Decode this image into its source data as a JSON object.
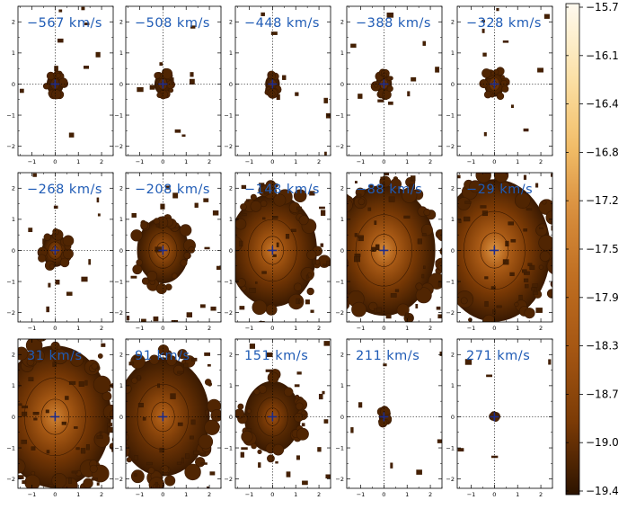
{
  "chart_data": {
    "type": "heatmap",
    "layout": {
      "rows": 3,
      "cols": 5
    },
    "panel_x_axis": {
      "range": [
        -1.6,
        2.5
      ],
      "ticks": [
        -1,
        0,
        1,
        2
      ]
    },
    "panel_y_axis": {
      "range": [
        -2.3,
        2.5
      ],
      "ticks": [
        -2,
        -1,
        0,
        1,
        2
      ]
    },
    "reference_lines": {
      "x": 0,
      "y": 0,
      "style": "dotted"
    },
    "marker": {
      "shape": "plus",
      "x": 0,
      "y": 0,
      "color": "#1a2a8a"
    },
    "panels": [
      {
        "label": "−567 km/s",
        "peak": -18.9,
        "extent": 0.35
      },
      {
        "label": "−508 km/s",
        "peak": -18.8,
        "extent": 0.35
      },
      {
        "label": "−448 km/s",
        "peak": -18.7,
        "extent": 0.3
      },
      {
        "label": "−388 km/s",
        "peak": -18.6,
        "extent": 0.33
      },
      {
        "label": "−328 km/s",
        "peak": -18.5,
        "extent": 0.42
      },
      {
        "label": "−268 km/s",
        "peak": -18.3,
        "extent": 0.55
      },
      {
        "label": "−208 km/s",
        "peak": -18.0,
        "extent": 1.1
      },
      {
        "label": "−148 km/s",
        "peak": -17.6,
        "extent": 1.9
      },
      {
        "label": "−88 km/s",
        "peak": -17.3,
        "extent": 2.2
      },
      {
        "label": "−29 km/s",
        "peak": -17.2,
        "extent": 2.4
      },
      {
        "label": "31 km/s",
        "peak": -17.4,
        "extent": 2.4
      },
      {
        "label": "91 km/s",
        "peak": -17.9,
        "extent": 2.0
      },
      {
        "label": "151 km/s",
        "peak": -18.4,
        "extent": 1.2
      },
      {
        "label": "211 km/s",
        "peak": -18.9,
        "extent": 0.2
      },
      {
        "label": "271 km/s",
        "peak": -19.2,
        "extent": 0.06
      }
    ],
    "colorbar": {
      "ticks": [
        "−15.7",
        "−16.1",
        "−16.4",
        "−16.8",
        "−17.2",
        "−17.5",
        "−17.9",
        "−18.3",
        "−18.7",
        "−19.0",
        "−19.4"
      ],
      "min": -19.4,
      "max": -15.7,
      "colors": [
        "#2b1300",
        "#7a3a05",
        "#a35512",
        "#bd6b1f",
        "#d78c3b",
        "#f3bf6a",
        "#fbe2aa",
        "#fffaf0"
      ]
    }
  }
}
